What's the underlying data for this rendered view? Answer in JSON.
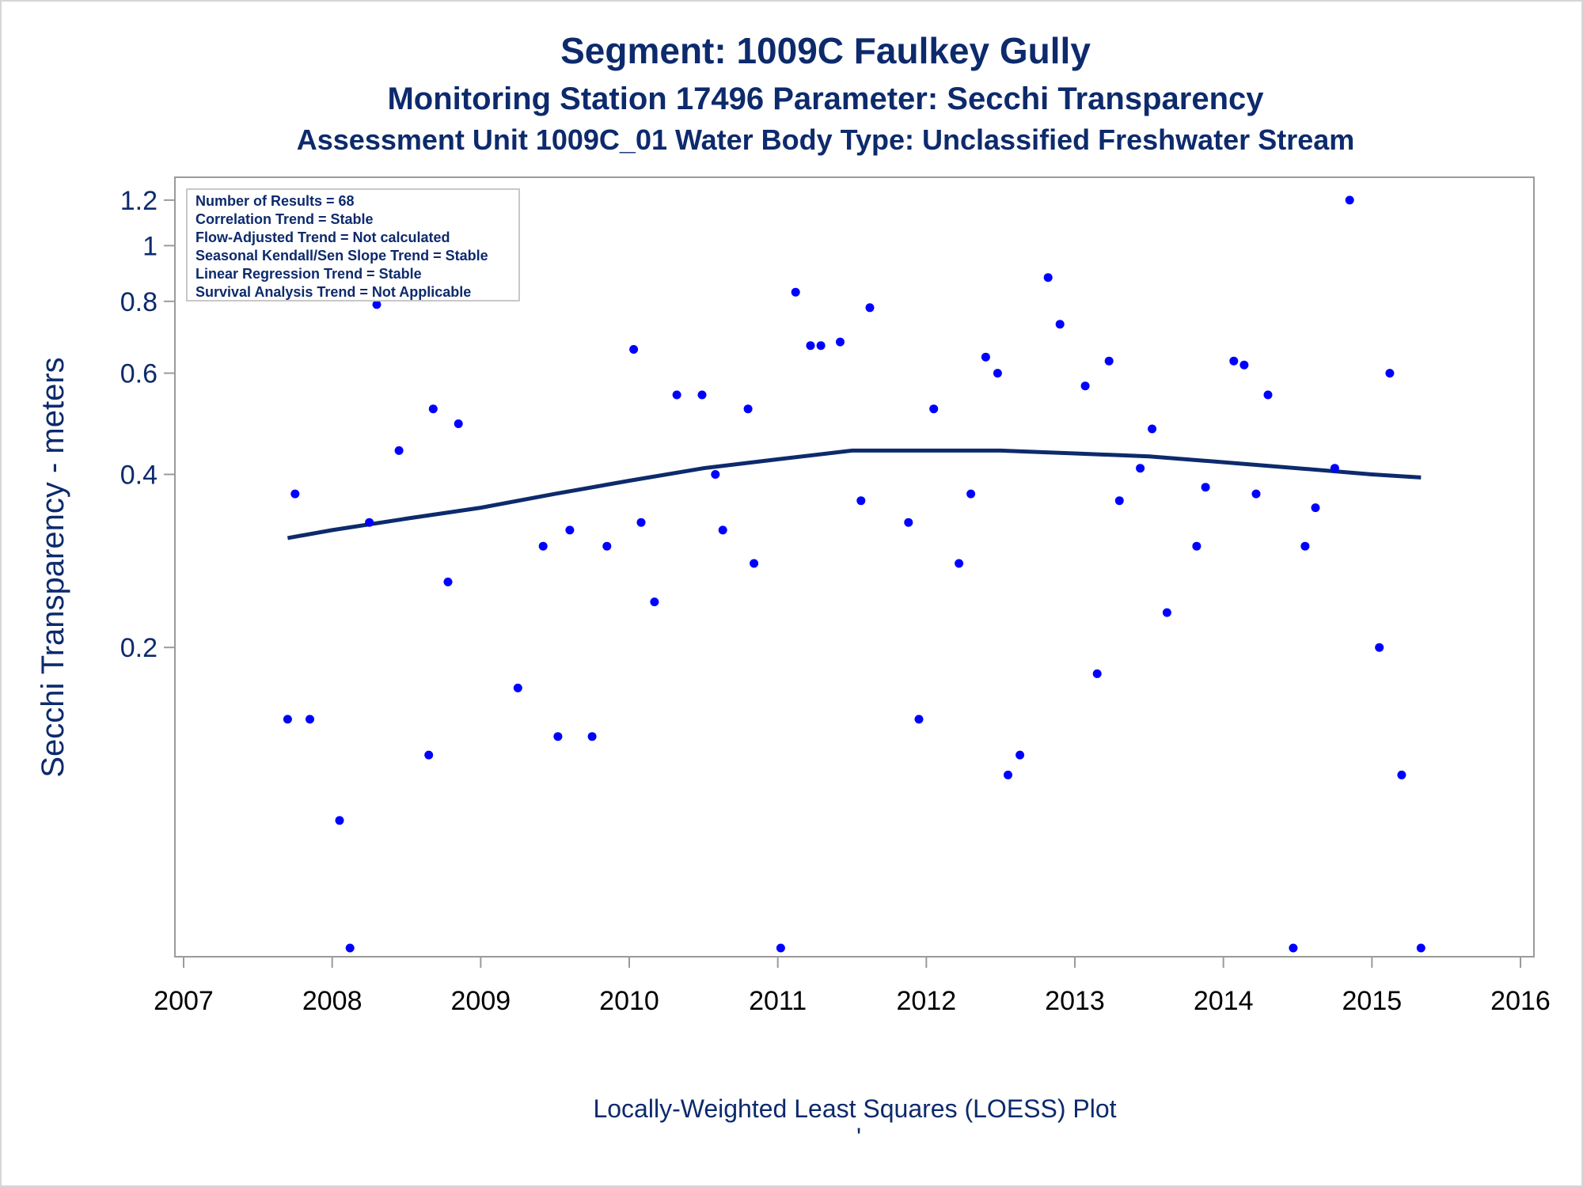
{
  "chart_data": {
    "type": "scatter",
    "title": "Segment: 1009C  Faulkey Gully",
    "subtitle": "Monitoring Station 17496 Parameter: Secchi Transparency",
    "subtitle2": "Assessment Unit 1009C_01   Water Body Type: Unclassified Freshwater Stream",
    "ylabel": "Secchi Transparency - meters",
    "xlabel": "Locally-Weighted Least Squares (LOESS) Plot",
    "footnote_mark": "'",
    "y_scale": "log",
    "xlim": [
      2007,
      2016
    ],
    "ylim": [
      0.06,
      1.25
    ],
    "y_ticks": [
      0.2,
      0.4,
      0.6,
      0.8,
      1,
      1.2
    ],
    "y_tick_labels": [
      "0.2",
      "0.4",
      "0.6",
      "0.8",
      "1",
      "1.2"
    ],
    "x_ticks": [
      2007,
      2008,
      2009,
      2010,
      2011,
      2012,
      2013,
      2014,
      2015,
      2016
    ],
    "x_tick_labels": [
      "2007",
      "2008",
      "2009",
      "2010",
      "2011",
      "2012",
      "2013",
      "2014",
      "2015",
      "2016"
    ],
    "grid": false,
    "legend_placement": "top-left",
    "stats": [
      "Number of Results = 68",
      "Correlation Trend = Stable",
      "Flow-Adjusted Trend = Not calculated",
      "Seasonal Kendall/Sen Slope Trend = Stable",
      "Linear Regression Trend = Stable",
      "Survival Analysis Trend = Not Applicable"
    ],
    "points": [
      {
        "x": 2007.7,
        "y": 0.15
      },
      {
        "x": 2007.75,
        "y": 0.37
      },
      {
        "x": 2007.85,
        "y": 0.15
      },
      {
        "x": 2008.05,
        "y": 0.1
      },
      {
        "x": 2008.12,
        "y": 0.06
      },
      {
        "x": 2008.25,
        "y": 0.33
      },
      {
        "x": 2008.3,
        "y": 0.79
      },
      {
        "x": 2008.45,
        "y": 0.44
      },
      {
        "x": 2008.65,
        "y": 0.13
      },
      {
        "x": 2008.68,
        "y": 0.52
      },
      {
        "x": 2008.78,
        "y": 0.26
      },
      {
        "x": 2008.85,
        "y": 0.49
      },
      {
        "x": 2009.02,
        "y": 1.2
      },
      {
        "x": 2009.25,
        "y": 0.17
      },
      {
        "x": 2009.42,
        "y": 0.3
      },
      {
        "x": 2009.52,
        "y": 0.14
      },
      {
        "x": 2009.6,
        "y": 0.32
      },
      {
        "x": 2009.75,
        "y": 0.14
      },
      {
        "x": 2009.85,
        "y": 0.3
      },
      {
        "x": 2010.03,
        "y": 0.66
      },
      {
        "x": 2010.08,
        "y": 0.33
      },
      {
        "x": 2010.17,
        "y": 0.24
      },
      {
        "x": 2010.32,
        "y": 0.55
      },
      {
        "x": 2010.49,
        "y": 0.55
      },
      {
        "x": 2010.58,
        "y": 0.4
      },
      {
        "x": 2010.63,
        "y": 0.32
      },
      {
        "x": 2010.8,
        "y": 0.52
      },
      {
        "x": 2010.84,
        "y": 0.28
      },
      {
        "x": 2011.02,
        "y": 0.06
      },
      {
        "x": 2011.12,
        "y": 0.83
      },
      {
        "x": 2011.22,
        "y": 0.67
      },
      {
        "x": 2011.29,
        "y": 0.67
      },
      {
        "x": 2011.42,
        "y": 0.68
      },
      {
        "x": 2011.56,
        "y": 0.36
      },
      {
        "x": 2011.62,
        "y": 0.78
      },
      {
        "x": 2011.88,
        "y": 0.33
      },
      {
        "x": 2011.95,
        "y": 0.15
      },
      {
        "x": 2012.05,
        "y": 0.52
      },
      {
        "x": 2012.22,
        "y": 0.28
      },
      {
        "x": 2012.3,
        "y": 0.37
      },
      {
        "x": 2012.4,
        "y": 0.64
      },
      {
        "x": 2012.48,
        "y": 0.6
      },
      {
        "x": 2012.55,
        "y": 0.12
      },
      {
        "x": 2012.63,
        "y": 0.13
      },
      {
        "x": 2012.82,
        "y": 0.88
      },
      {
        "x": 2012.9,
        "y": 0.73
      },
      {
        "x": 2013.07,
        "y": 0.57
      },
      {
        "x": 2013.15,
        "y": 0.18
      },
      {
        "x": 2013.23,
        "y": 0.63
      },
      {
        "x": 2013.3,
        "y": 0.36
      },
      {
        "x": 2013.44,
        "y": 0.41
      },
      {
        "x": 2013.52,
        "y": 0.48
      },
      {
        "x": 2013.62,
        "y": 0.23
      },
      {
        "x": 2013.82,
        "y": 0.3
      },
      {
        "x": 2013.88,
        "y": 0.38
      },
      {
        "x": 2014.07,
        "y": 0.63
      },
      {
        "x": 2014.14,
        "y": 0.62
      },
      {
        "x": 2014.22,
        "y": 0.37
      },
      {
        "x": 2014.3,
        "y": 0.55
      },
      {
        "x": 2014.47,
        "y": 0.06
      },
      {
        "x": 2014.55,
        "y": 0.3
      },
      {
        "x": 2014.62,
        "y": 0.35
      },
      {
        "x": 2014.75,
        "y": 0.41
      },
      {
        "x": 2014.85,
        "y": 1.2
      },
      {
        "x": 2015.05,
        "y": 0.2
      },
      {
        "x": 2015.12,
        "y": 0.6
      },
      {
        "x": 2015.2,
        "y": 0.12
      },
      {
        "x": 2015.33,
        "y": 0.06
      }
    ],
    "loess": [
      {
        "x": 2007.7,
        "y": 0.31
      },
      {
        "x": 2008.0,
        "y": 0.32
      },
      {
        "x": 2008.5,
        "y": 0.335
      },
      {
        "x": 2009.0,
        "y": 0.35
      },
      {
        "x": 2009.5,
        "y": 0.37
      },
      {
        "x": 2010.0,
        "y": 0.39
      },
      {
        "x": 2010.5,
        "y": 0.41
      },
      {
        "x": 2011.0,
        "y": 0.425
      },
      {
        "x": 2011.5,
        "y": 0.44
      },
      {
        "x": 2012.0,
        "y": 0.44
      },
      {
        "x": 2012.5,
        "y": 0.44
      },
      {
        "x": 2013.0,
        "y": 0.435
      },
      {
        "x": 2013.5,
        "y": 0.43
      },
      {
        "x": 2014.0,
        "y": 0.42
      },
      {
        "x": 2014.5,
        "y": 0.41
      },
      {
        "x": 2015.0,
        "y": 0.4
      },
      {
        "x": 2015.33,
        "y": 0.395
      }
    ],
    "colors": {
      "points": "#0000ff",
      "loess": "#0d2a6c",
      "axis": "#9b9b9b",
      "text": "#0d2a6c"
    }
  }
}
